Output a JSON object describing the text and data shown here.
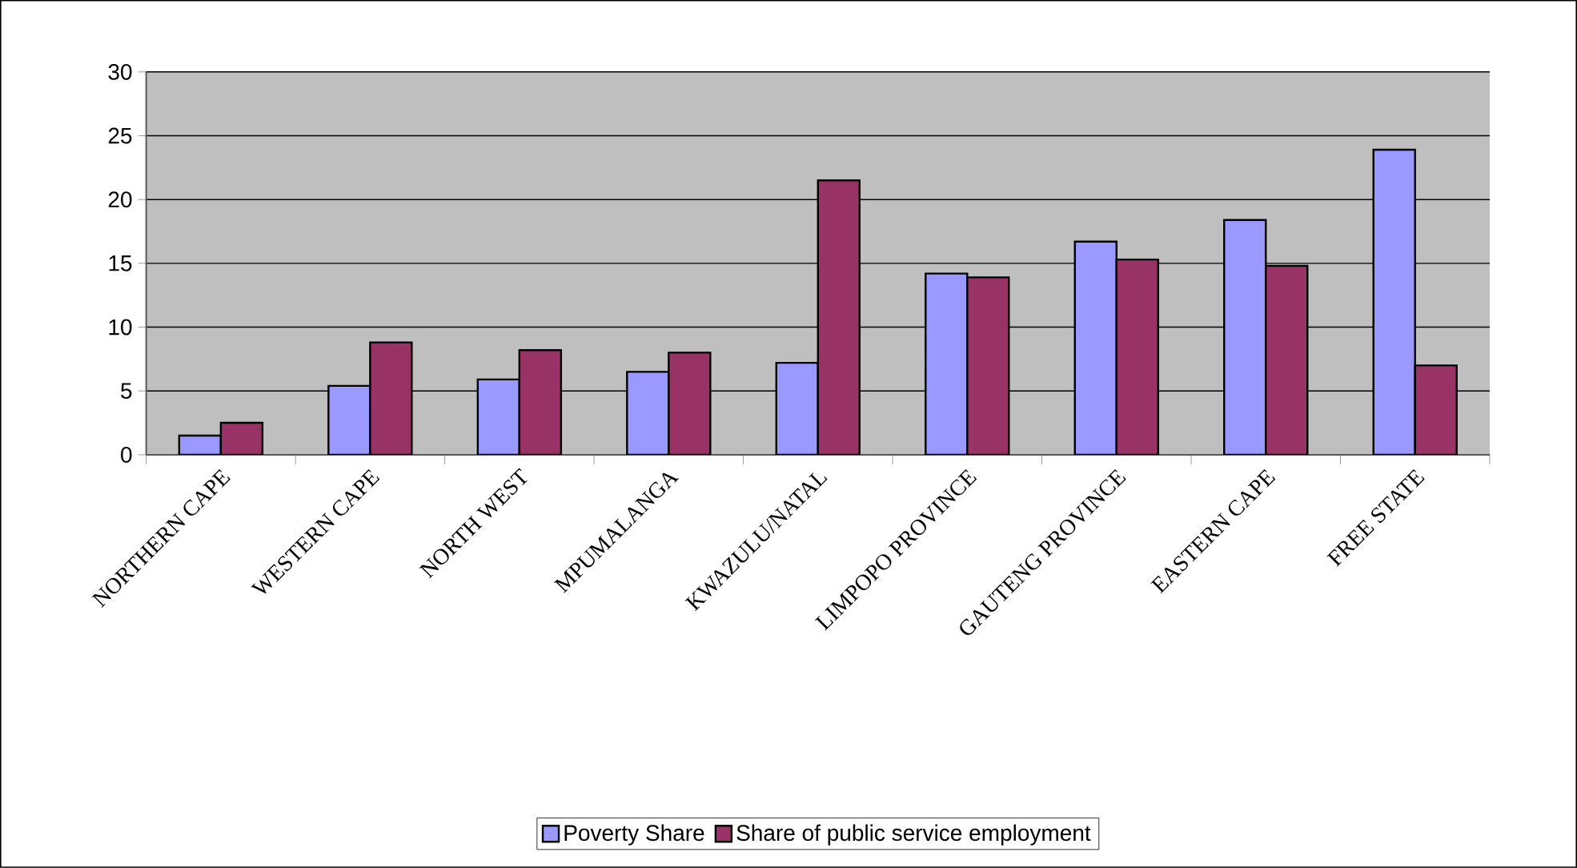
{
  "chart_data": {
    "type": "bar",
    "categories": [
      "NORTHERN CAPE",
      "WESTERN CAPE",
      "NORTH WEST",
      "MPUMALANGA",
      "KWAZULU/NATAL",
      "LIMPOPO PROVINCE",
      "GAUTENG PROVINCE",
      "EASTERN CAPE",
      "FREE STATE"
    ],
    "series": [
      {
        "name": "Poverty Share",
        "color": "#9999ff",
        "values": [
          1.5,
          5.4,
          5.9,
          6.5,
          7.2,
          14.2,
          16.7,
          18.4,
          23.9
        ]
      },
      {
        "name": "Share of public service employment",
        "color": "#993366",
        "values": [
          2.5,
          8.8,
          8.2,
          8.0,
          21.5,
          13.9,
          15.3,
          14.8,
          7.0
        ]
      }
    ],
    "ylim": [
      0,
      30
    ],
    "yticks": [
      0,
      5,
      10,
      15,
      20,
      25,
      30
    ],
    "grid": "y",
    "legend": "bottom"
  }
}
